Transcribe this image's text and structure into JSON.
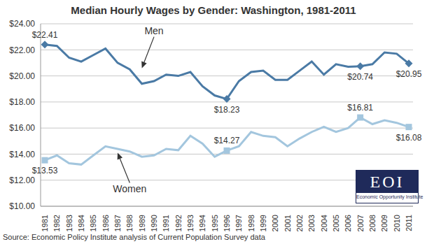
{
  "chart_data": {
    "type": "line",
    "title": "Median Hourly Wages by Gender: Washington, 1981-2011",
    "x": [
      "1981",
      "1982",
      "1983",
      "1984",
      "1985",
      "1986",
      "1987",
      "1988",
      "1989",
      "1990",
      "1991",
      "1992",
      "1993",
      "1994",
      "1995",
      "1996",
      "1997",
      "1998",
      "1999",
      "2000",
      "2001",
      "2002",
      "2003",
      "2004",
      "2005",
      "2006",
      "2007",
      "2008",
      "2009",
      "2010",
      "2011"
    ],
    "series": [
      {
        "name": "Men",
        "color": "#4a7aa5",
        "marker": "diamond",
        "values": [
          22.41,
          22.3,
          21.4,
          21.1,
          21.6,
          22.1,
          21.0,
          20.5,
          19.4,
          19.6,
          20.1,
          20.0,
          20.3,
          19.2,
          18.5,
          18.23,
          19.6,
          20.3,
          20.4,
          19.7,
          19.7,
          20.4,
          21.1,
          20.1,
          20.9,
          20.7,
          20.74,
          20.9,
          21.8,
          21.7,
          20.95
        ],
        "value_labels": [
          "$22.41",
          null,
          null,
          null,
          null,
          null,
          null,
          null,
          null,
          null,
          null,
          null,
          null,
          null,
          null,
          "$18.23",
          null,
          null,
          null,
          null,
          null,
          null,
          null,
          null,
          null,
          null,
          "$20.74",
          null,
          null,
          null,
          "$20.95"
        ]
      },
      {
        "name": "Women",
        "color": "#a3c6de",
        "marker": "square",
        "values": [
          13.53,
          13.9,
          13.3,
          13.2,
          13.9,
          14.6,
          14.4,
          14.2,
          13.8,
          13.9,
          14.4,
          14.3,
          15.4,
          14.8,
          13.8,
          14.27,
          14.6,
          15.7,
          15.4,
          15.3,
          14.6,
          15.2,
          15.7,
          16.1,
          15.7,
          16.0,
          16.81,
          16.3,
          16.6,
          16.4,
          16.08
        ],
        "value_labels": [
          "$13.53",
          null,
          null,
          null,
          null,
          null,
          null,
          null,
          null,
          null,
          null,
          null,
          null,
          null,
          null,
          "$14.27",
          null,
          null,
          null,
          null,
          null,
          null,
          null,
          null,
          null,
          null,
          "$16.81",
          null,
          null,
          null,
          "$16.08"
        ]
      }
    ],
    "ylim": [
      10,
      24
    ],
    "yticks": [
      {
        "value": 10,
        "label": "$10.00"
      },
      {
        "value": 12,
        "label": "$12.00"
      },
      {
        "value": 14,
        "label": "$14.00"
      },
      {
        "value": 16,
        "label": "$16.00"
      },
      {
        "value": 18,
        "label": "$18.00"
      },
      {
        "value": 20,
        "label": "$20.00"
      },
      {
        "value": 22,
        "label": "$22.00"
      },
      {
        "value": 24,
        "label": "$24.00"
      }
    ],
    "grid": true,
    "annotations": [
      {
        "text": "Men",
        "x": "1990",
        "y": 23.0,
        "arrow_to": {
          "x": "1989",
          "y": 20.6
        }
      },
      {
        "text": "Women",
        "x": "1988",
        "y": 11.8,
        "arrow_to": {
          "x": "1987",
          "y": 14.1
        }
      }
    ],
    "source": "Source: Economic Policy Institute analysis of Current Population Survey data",
    "logo": {
      "text": "EOI",
      "subtext": "Economic Opportunity Institute"
    }
  }
}
